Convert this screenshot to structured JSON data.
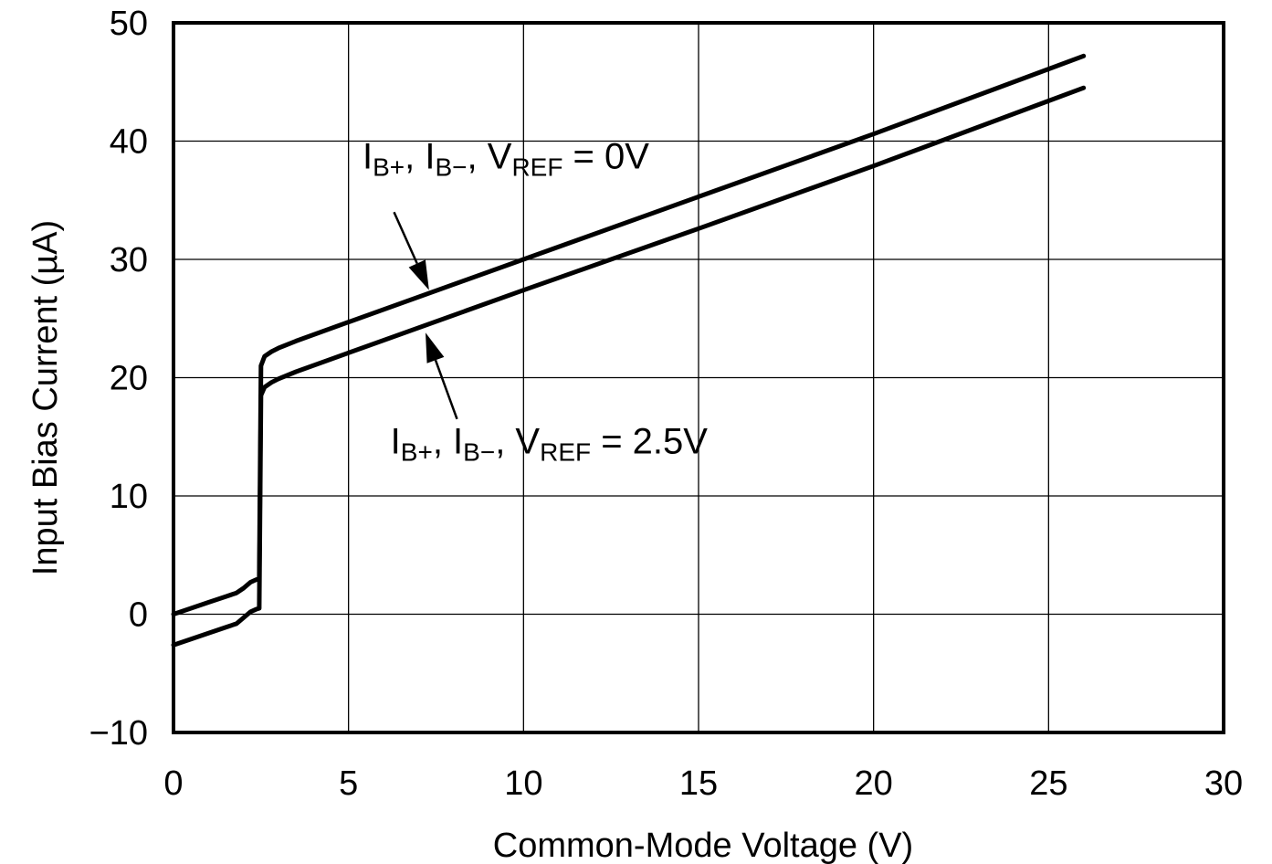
{
  "chart_data": {
    "type": "line",
    "xlabel": "Common-Mode Voltage (V)",
    "ylabel": "Input Bias Current (µA)",
    "xlim": [
      0,
      30
    ],
    "ylim": [
      -10,
      50
    ],
    "xticks": [
      0,
      5,
      10,
      15,
      20,
      25,
      30
    ],
    "yticks": [
      -10,
      0,
      10,
      20,
      30,
      40,
      50
    ],
    "ytick_labels": [
      "−10",
      "0",
      "10",
      "20",
      "30",
      "40",
      "50"
    ],
    "grid": true,
    "series": [
      {
        "x": [
          0,
          0.5,
          1.0,
          1.5,
          1.8,
          2.0,
          2.2,
          2.35,
          2.45,
          2.5,
          2.6,
          2.8,
          3.0,
          3.5,
          5,
          10,
          15,
          20,
          26
        ],
        "y": [
          0,
          0.5,
          1.0,
          1.5,
          1.8,
          2.2,
          2.7,
          2.9,
          3.0,
          21.0,
          21.8,
          22.2,
          22.5,
          23.1,
          24.7,
          30.0,
          35.3,
          40.6,
          47.2
        ]
      },
      {
        "x": [
          0,
          0.5,
          1.0,
          1.5,
          1.8,
          2.0,
          2.2,
          2.35,
          2.45,
          2.5,
          2.6,
          2.8,
          3.0,
          3.5,
          5,
          10,
          15,
          20,
          26
        ],
        "y": [
          -2.6,
          -2.1,
          -1.6,
          -1.1,
          -0.8,
          -0.3,
          0.2,
          0.4,
          0.5,
          18.5,
          19.2,
          19.6,
          19.9,
          20.5,
          22.1,
          27.4,
          32.6,
          37.9,
          44.5
        ]
      }
    ],
    "annotations": [
      {
        "main": "I",
        "parts": [
          {
            "text": "I",
            "sub": false
          },
          {
            "text": "B+",
            "sub": true
          },
          {
            "text": ", I",
            "sub": false
          },
          {
            "text": "B−",
            "sub": true
          },
          {
            "text": ", V",
            "sub": false
          },
          {
            "text": "REF",
            "sub": true
          },
          {
            "text": " = 0V",
            "sub": false
          }
        ],
        "text_pos": [
          5.4,
          37.7
        ],
        "arrow_from": [
          6.3,
          34.0
        ],
        "arrow_to": [
          7.3,
          27.4
        ]
      },
      {
        "main": "I",
        "parts": [
          {
            "text": "I",
            "sub": false
          },
          {
            "text": "B+",
            "sub": true
          },
          {
            "text": ", I",
            "sub": false
          },
          {
            "text": "B−",
            "sub": true
          },
          {
            "text": ", V",
            "sub": false
          },
          {
            "text": "REF",
            "sub": true
          },
          {
            "text": " = 2.5V",
            "sub": false
          }
        ],
        "text_pos": [
          6.2,
          13.6
        ],
        "arrow_from": [
          8.1,
          16.5
        ],
        "arrow_to": [
          7.2,
          23.8
        ]
      }
    ]
  }
}
